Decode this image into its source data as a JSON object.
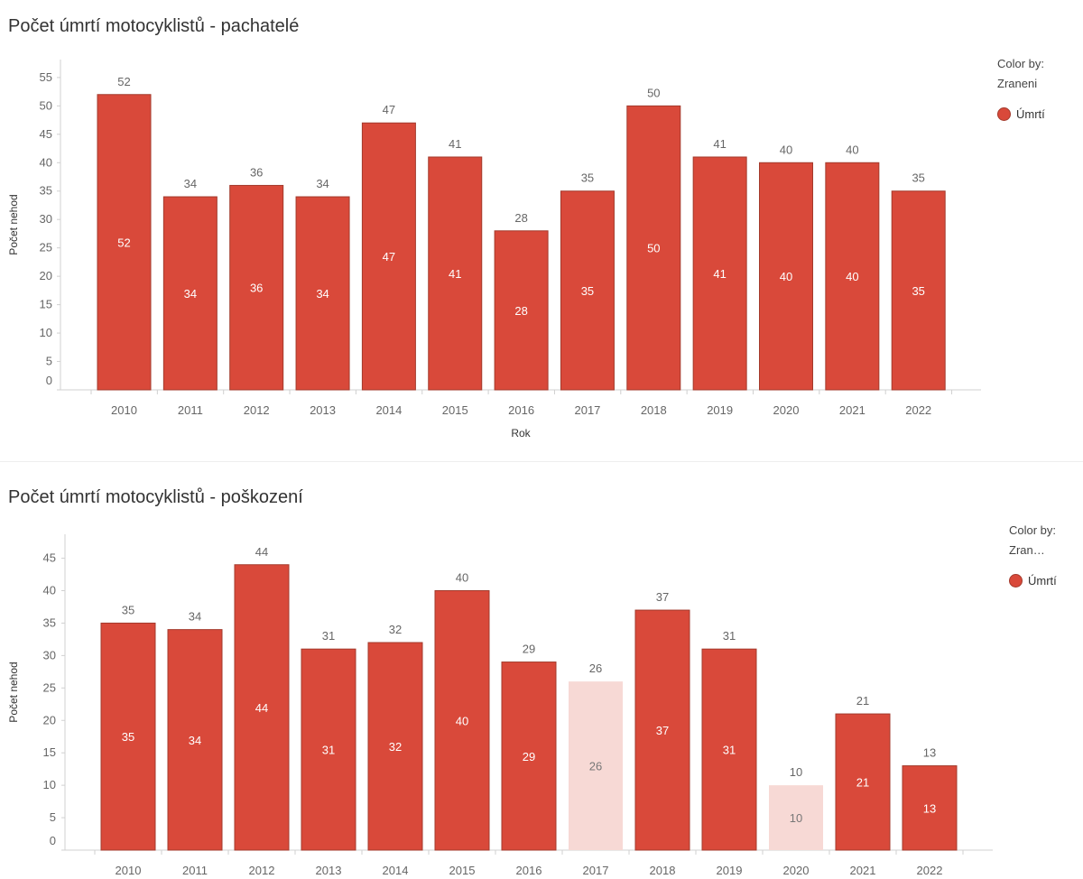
{
  "chart_data": [
    {
      "type": "bar",
      "title": "Počet úmrtí motocyklistů - pachatelé",
      "xlabel": "Rok",
      "ylabel": "Počet nehod",
      "categories": [
        "2010",
        "2011",
        "2012",
        "2013",
        "2014",
        "2015",
        "2016",
        "2017",
        "2018",
        "2019",
        "2020",
        "2021",
        "2022"
      ],
      "values": [
        52,
        34,
        36,
        34,
        47,
        41,
        28,
        35,
        50,
        41,
        40,
        40,
        35
      ],
      "faded": [
        false,
        false,
        false,
        false,
        false,
        false,
        false,
        false,
        false,
        false,
        false,
        false,
        false
      ],
      "yticks": [
        0,
        5,
        10,
        15,
        20,
        25,
        30,
        35,
        40,
        45,
        50,
        55
      ],
      "ylim": [
        0,
        58
      ],
      "grid": false,
      "legend": {
        "title_line1": "Color by:",
        "title_line2": "Zraneni",
        "items": [
          "Úmrtí"
        ],
        "position": "right"
      },
      "colors": {
        "bar": "#d9493a",
        "bar_stroke": "#a33a2c",
        "bar_faded": "#f7d9d5"
      }
    },
    {
      "type": "bar",
      "title": "Počet úmrtí motocyklistů - poškození",
      "xlabel": "",
      "ylabel": "Počet nehod",
      "categories": [
        "2010",
        "2011",
        "2012",
        "2013",
        "2014",
        "2015",
        "2016",
        "2017",
        "2018",
        "2019",
        "2020",
        "2021",
        "2022"
      ],
      "values": [
        35,
        34,
        44,
        31,
        32,
        40,
        29,
        26,
        37,
        31,
        10,
        21,
        13
      ],
      "faded": [
        false,
        false,
        false,
        false,
        false,
        false,
        false,
        true,
        false,
        false,
        true,
        false,
        false
      ],
      "yticks": [
        0,
        5,
        10,
        15,
        20,
        25,
        30,
        35,
        40,
        45
      ],
      "ylim": [
        0,
        48
      ],
      "grid": false,
      "legend": {
        "title_line1": "Color by:",
        "title_line2": "Zran…",
        "items": [
          "Úmrtí"
        ],
        "position": "right"
      },
      "colors": {
        "bar": "#d9493a",
        "bar_stroke": "#a33a2c",
        "bar_faded": "#f7d9d5"
      }
    }
  ]
}
